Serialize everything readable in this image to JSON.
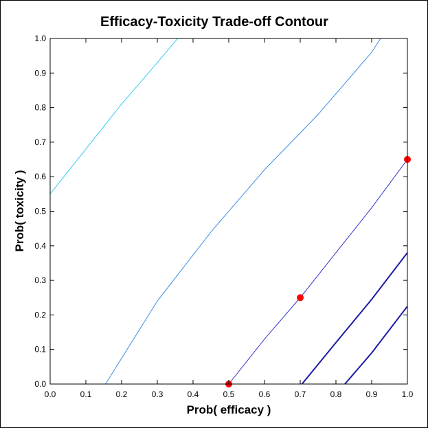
{
  "chart_data": {
    "type": "line",
    "title": "Efficacy-Toxicity Trade-off Contour",
    "xlabel": "Prob( efficacy )",
    "ylabel": "Prob( toxicity )",
    "xlim": [
      0.0,
      1.0
    ],
    "ylim": [
      0.0,
      1.0
    ],
    "x_ticks": [
      "0.0",
      "0.1",
      "0.2",
      "0.3",
      "0.4",
      "0.5",
      "0.6",
      "0.7",
      "0.8",
      "0.9",
      "1.0"
    ],
    "y_ticks": [
      "0.0",
      "0.1",
      "0.2",
      "0.3",
      "0.4",
      "0.5",
      "0.6",
      "0.7",
      "0.8",
      "0.9",
      "1.0"
    ],
    "grid": false,
    "series": [
      {
        "color": "#33ccee",
        "line_weight": "thin",
        "x": [
          0.0,
          0.1,
          0.2,
          0.3,
          0.357
        ],
        "y": [
          0.55,
          0.68,
          0.81,
          0.93,
          1.0
        ]
      },
      {
        "color": "#3a8ee6",
        "line_weight": "thin",
        "x": [
          0.155,
          0.3,
          0.45,
          0.6,
          0.75,
          0.9,
          0.925
        ],
        "y": [
          0.0,
          0.24,
          0.44,
          0.62,
          0.78,
          0.96,
          1.0
        ]
      },
      {
        "color": "#3333cc",
        "line_weight": "thin",
        "x": [
          0.5,
          0.6,
          0.7,
          0.8,
          0.9,
          1.0
        ],
        "y": [
          0.0,
          0.13,
          0.25,
          0.38,
          0.51,
          0.65
        ]
      },
      {
        "color": "#1a1aa6",
        "line_weight": "thick",
        "x": [
          0.705,
          0.8,
          0.9,
          1.0
        ],
        "y": [
          0.0,
          0.12,
          0.245,
          0.38
        ]
      },
      {
        "color": "#1a1aa6",
        "line_weight": "thick",
        "x": [
          0.825,
          0.9,
          1.0
        ],
        "y": [
          0.0,
          0.09,
          0.225
        ]
      }
    ],
    "points": [
      {
        "x": 0.5,
        "y": 0.0,
        "color": "#ff0000"
      },
      {
        "x": 0.7,
        "y": 0.25,
        "color": "#ff0000"
      },
      {
        "x": 1.0,
        "y": 0.65,
        "color": "#ff0000"
      }
    ]
  }
}
